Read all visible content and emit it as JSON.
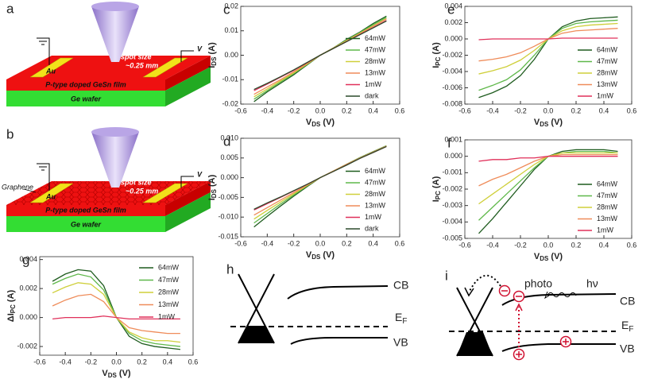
{
  "chart_data": [
    {
      "panel": "c",
      "type": "line",
      "x": [
        -0.5,
        -0.4,
        -0.3,
        -0.2,
        -0.1,
        0,
        0.1,
        0.2,
        0.3,
        0.4,
        0.5
      ],
      "xlim": [
        -0.6,
        0.6
      ],
      "xticks": [
        -0.6,
        -0.4,
        -0.2,
        {
          "value": 0,
          "label": "0.0"
        },
        0.2,
        0.4,
        0.6
      ],
      "ylim": [
        -0.02,
        0.02
      ],
      "yticks": [
        -0.02,
        -0.01,
        {
          "value": 0,
          "label": "0.00"
        },
        0.01,
        0.02
      ],
      "xlabel": [
        "V",
        "DS",
        " (V)"
      ],
      "ylabel": [
        "I",
        "DS",
        " (A)"
      ],
      "legend": "lower right",
      "series": [
        {
          "name": "64mW",
          "color": "#1f5c1f",
          "values": [
            -0.019,
            -0.015,
            -0.0115,
            -0.008,
            -0.004,
            0,
            0.003,
            0.0065,
            0.0095,
            0.013,
            0.016
          ]
        },
        {
          "name": "47mW",
          "color": "#5fb84a",
          "values": [
            -0.018,
            -0.0145,
            -0.011,
            -0.0075,
            -0.0038,
            0,
            0.003,
            0.0063,
            0.0093,
            0.0125,
            0.0155
          ]
        },
        {
          "name": "28mW",
          "color": "#cfcf3a",
          "values": [
            -0.017,
            -0.0138,
            -0.0105,
            -0.0072,
            -0.0036,
            0,
            0.003,
            0.006,
            0.009,
            0.012,
            0.015
          ]
        },
        {
          "name": "13mW",
          "color": "#ef8c5a",
          "values": [
            -0.016,
            -0.013,
            -0.01,
            -0.0068,
            -0.0034,
            0,
            0.0029,
            0.0058,
            0.0088,
            0.0118,
            0.0148
          ]
        },
        {
          "name": "1mW",
          "color": "#e0305a",
          "values": [
            -0.0145,
            -0.0118,
            -0.009,
            -0.0062,
            -0.0031,
            0,
            0.0028,
            0.0056,
            0.0085,
            0.0113,
            0.0142
          ]
        },
        {
          "name": "dark",
          "color": "#2b4a2b",
          "values": [
            -0.014,
            -0.0115,
            -0.0088,
            -0.006,
            -0.003,
            0,
            0.0028,
            0.0056,
            0.0084,
            0.0112,
            0.014
          ]
        }
      ]
    },
    {
      "panel": "d",
      "type": "line",
      "x": [
        -0.5,
        -0.4,
        -0.3,
        -0.2,
        -0.1,
        0,
        0.1,
        0.2,
        0.3,
        0.4,
        0.5
      ],
      "xlim": [
        -0.6,
        0.6
      ],
      "xticks": [
        -0.6,
        -0.4,
        -0.2,
        {
          "value": 0,
          "label": "0.0"
        },
        0.2,
        0.4,
        0.6
      ],
      "ylim": [
        -0.015,
        0.01
      ],
      "yticks": [
        -0.015,
        {
          "value": -0.01,
          "label": "-0.010"
        },
        -0.005,
        {
          "value": 0,
          "label": "0.000"
        },
        0.005,
        {
          "value": 0.01,
          "label": "0.010"
        }
      ],
      "xlabel": [
        "V",
        "DS",
        " (V)"
      ],
      "ylabel": [
        "I",
        "DS",
        " (A)"
      ],
      "legend": "lower right",
      "series": [
        {
          "name": "64mW",
          "color": "#1f5c1f",
          "values": [
            -0.0125,
            -0.0098,
            -0.0072,
            -0.0047,
            -0.0023,
            0,
            0.0017,
            0.0034,
            0.0051,
            0.0066,
            0.0081
          ]
        },
        {
          "name": "47mW",
          "color": "#5fb84a",
          "values": [
            -0.0115,
            -0.0091,
            -0.0067,
            -0.0044,
            -0.0021,
            0,
            0.0017,
            0.0034,
            0.0051,
            0.0066,
            0.0081
          ]
        },
        {
          "name": "28mW",
          "color": "#cfcf3a",
          "values": [
            -0.0105,
            -0.0083,
            -0.0062,
            -0.0041,
            -0.002,
            0,
            0.0017,
            0.0034,
            0.005,
            0.0065,
            0.008
          ]
        },
        {
          "name": "13mW",
          "color": "#ef8c5a",
          "values": [
            -0.0095,
            -0.0076,
            -0.0057,
            -0.0038,
            -0.0019,
            0,
            0.0017,
            0.0033,
            0.005,
            0.0065,
            0.008
          ]
        },
        {
          "name": "1mW",
          "color": "#e0305a",
          "values": [
            -0.0082,
            -0.0066,
            -0.005,
            -0.0034,
            -0.0017,
            0,
            0.0016,
            0.0033,
            0.0049,
            0.0064,
            0.0079
          ]
        },
        {
          "name": "dark",
          "color": "#2b4a2b",
          "values": [
            -0.008,
            -0.0064,
            -0.0049,
            -0.0033,
            -0.0017,
            0,
            0.0016,
            0.0032,
            0.0049,
            0.0064,
            0.0079
          ]
        }
      ]
    },
    {
      "panel": "e",
      "type": "line",
      "x": [
        -0.5,
        -0.4,
        -0.3,
        -0.2,
        -0.1,
        0,
        0.1,
        0.2,
        0.3,
        0.4,
        0.5
      ],
      "xlim": [
        -0.6,
        0.6
      ],
      "xticks": [
        -0.6,
        -0.4,
        -0.2,
        {
          "value": 0,
          "label": "0.0"
        },
        0.2,
        0.4,
        0.6
      ],
      "ylim": [
        -0.008,
        0.004
      ],
      "yticks": [
        -0.008,
        -0.006,
        -0.004,
        -0.002,
        {
          "value": 0,
          "label": "0.000"
        },
        0.002,
        0.004
      ],
      "xlabel": [
        "V",
        "DS",
        " (V)"
      ],
      "ylabel": [
        "I",
        "PC",
        " (A)"
      ],
      "legend": "lower right",
      "series": [
        {
          "name": "64mW",
          "color": "#1f5c1f",
          "values": [
            -0.0072,
            -0.0066,
            -0.0058,
            -0.0045,
            -0.0025,
            0,
            0.0015,
            0.0022,
            0.0025,
            0.0026,
            0.0027
          ]
        },
        {
          "name": "47mW",
          "color": "#5fb84a",
          "values": [
            -0.0063,
            -0.0057,
            -0.005,
            -0.0038,
            -0.002,
            0,
            0.0013,
            0.0019,
            0.0021,
            0.0022,
            0.0023
          ]
        },
        {
          "name": "28mW",
          "color": "#cfcf3a",
          "values": [
            -0.0043,
            -0.0039,
            -0.0034,
            -0.0026,
            -0.0014,
            0,
            0.001,
            0.0015,
            0.0017,
            0.0018,
            0.0019
          ]
        },
        {
          "name": "13mW",
          "color": "#ef8c5a",
          "values": [
            -0.0027,
            -0.0025,
            -0.0022,
            -0.0017,
            -0.0009,
            0,
            0.0007,
            0.001,
            0.0011,
            0.0012,
            0.0013
          ]
        },
        {
          "name": "1mW",
          "color": "#e0305a",
          "values": [
            -0.0001,
            0,
            0,
            0,
            0,
            0,
            0.0001,
            0.0001,
            0.0001,
            0.0001,
            0.0001
          ]
        }
      ]
    },
    {
      "panel": "f",
      "type": "line",
      "x": [
        -0.5,
        -0.4,
        -0.3,
        -0.2,
        -0.1,
        0,
        0.1,
        0.2,
        0.3,
        0.4,
        0.5
      ],
      "xlim": [
        -0.6,
        0.6
      ],
      "xticks": [
        -0.6,
        -0.4,
        -0.2,
        {
          "value": 0,
          "label": "0.0"
        },
        0.2,
        0.4,
        0.6
      ],
      "ylim": [
        -0.005,
        0.001
      ],
      "yticks": [
        -0.005,
        -0.004,
        -0.003,
        -0.002,
        -0.001,
        {
          "value": 0,
          "label": "0.000"
        },
        0.001
      ],
      "xlabel": [
        "V",
        "DS",
        " (V)"
      ],
      "ylabel": [
        "I",
        "PC",
        " (A)"
      ],
      "legend": "lower right",
      "series": [
        {
          "name": "64mW",
          "color": "#1f5c1f",
          "values": [
            -0.0047,
            -0.0038,
            -0.0028,
            -0.0018,
            -0.0008,
            0,
            0.0003,
            0.0004,
            0.0004,
            0.0004,
            0.0003
          ]
        },
        {
          "name": "47mW",
          "color": "#5fb84a",
          "values": [
            -0.0039,
            -0.0031,
            -0.0023,
            -0.0015,
            -0.0007,
            0,
            0.0002,
            0.0003,
            0.0003,
            0.0003,
            0.0002
          ]
        },
        {
          "name": "28mW",
          "color": "#cfcf3a",
          "values": [
            -0.0029,
            -0.0023,
            -0.0017,
            -0.0011,
            -0.0005,
            0,
            0.0002,
            0.0002,
            0.0002,
            0.0002,
            0.0002
          ]
        },
        {
          "name": "13mW",
          "color": "#ef8c5a",
          "values": [
            -0.0018,
            -0.0014,
            -0.0011,
            -0.0007,
            -0.0003,
            0,
            0.0001,
            0.0001,
            0.0001,
            0.0001,
            0.0001
          ]
        },
        {
          "name": "1mW",
          "color": "#e0305a",
          "values": [
            -0.0003,
            -0.0002,
            -0.0002,
            -0.0001,
            -0.0001,
            0,
            0,
            0,
            0,
            0,
            0
          ]
        }
      ]
    },
    {
      "panel": "g",
      "type": "line",
      "x": [
        -0.5,
        -0.4,
        -0.3,
        -0.2,
        -0.1,
        0,
        0.1,
        0.2,
        0.3,
        0.4,
        0.5
      ],
      "xlim": [
        -0.6,
        0.6
      ],
      "xticks": [
        -0.6,
        -0.4,
        -0.2,
        {
          "value": 0,
          "label": "0.0"
        },
        0.2,
        0.4,
        0.6
      ],
      "ylim": [
        -0.0026,
        0.0042
      ],
      "yticks": [
        -0.002,
        {
          "value": 0,
          "label": "0.000"
        },
        0.002,
        0.004
      ],
      "xlabel": [
        "V",
        "DS",
        " (V)"
      ],
      "ylabel": [
        "ΔI",
        "PC",
        " (A)"
      ],
      "legend": "upper right",
      "series": [
        {
          "name": "64mW",
          "color": "#1f5c1f",
          "values": [
            0.0025,
            0.003,
            0.0033,
            0.0032,
            0.0022,
            0,
            -0.0013,
            -0.0018,
            -0.002,
            -0.0021,
            -0.0022
          ]
        },
        {
          "name": "47mW",
          "color": "#5fb84a",
          "values": [
            0.0023,
            0.0027,
            0.003,
            0.0028,
            0.0019,
            0,
            -0.0011,
            -0.0016,
            -0.0018,
            -0.0019,
            -0.002
          ]
        },
        {
          "name": "28mW",
          "color": "#cfcf3a",
          "values": [
            0.0017,
            0.0021,
            0.0024,
            0.0023,
            0.0016,
            0,
            -0.001,
            -0.0014,
            -0.0016,
            -0.0016,
            -0.0017
          ]
        },
        {
          "name": "13mW",
          "color": "#ef8c5a",
          "values": [
            0.0008,
            0.0012,
            0.0015,
            0.0016,
            0.0011,
            0,
            -0.0007,
            -0.0009,
            -0.001,
            -0.0011,
            -0.0011
          ]
        },
        {
          "name": "1mW",
          "color": "#e0305a",
          "values": [
            -0.0001,
            0,
            0,
            0,
            0.0001,
            0,
            -0.0001,
            -0.0001,
            -0.0001,
            -0.0001,
            -0.0001
          ]
        }
      ]
    }
  ],
  "diagrams": {
    "a": {
      "panel": "a",
      "electrode": "Au",
      "voltage": "V",
      "spot_size": "spot size",
      "spot_value": "~0.25 mm",
      "film": "P-type doped GeSn film",
      "wafer": "Ge wafer"
    },
    "b": {
      "panel": "b",
      "graphene": "Graphene",
      "electrode": "Au",
      "voltage": "V",
      "spot_size": "spot size",
      "spot_value": "~0.25 mm",
      "film": "P-type doped GeSn film",
      "wafer": "Ge wafer"
    },
    "h": {
      "panel": "h",
      "cb": "CB",
      "ef": [
        "E",
        "F"
      ],
      "vb": "VB"
    },
    "i": {
      "panel": "i",
      "photo": "photo",
      "hv": "hν",
      "cb": "CB",
      "ef": [
        "E",
        "F"
      ],
      "vb": "VB"
    }
  }
}
